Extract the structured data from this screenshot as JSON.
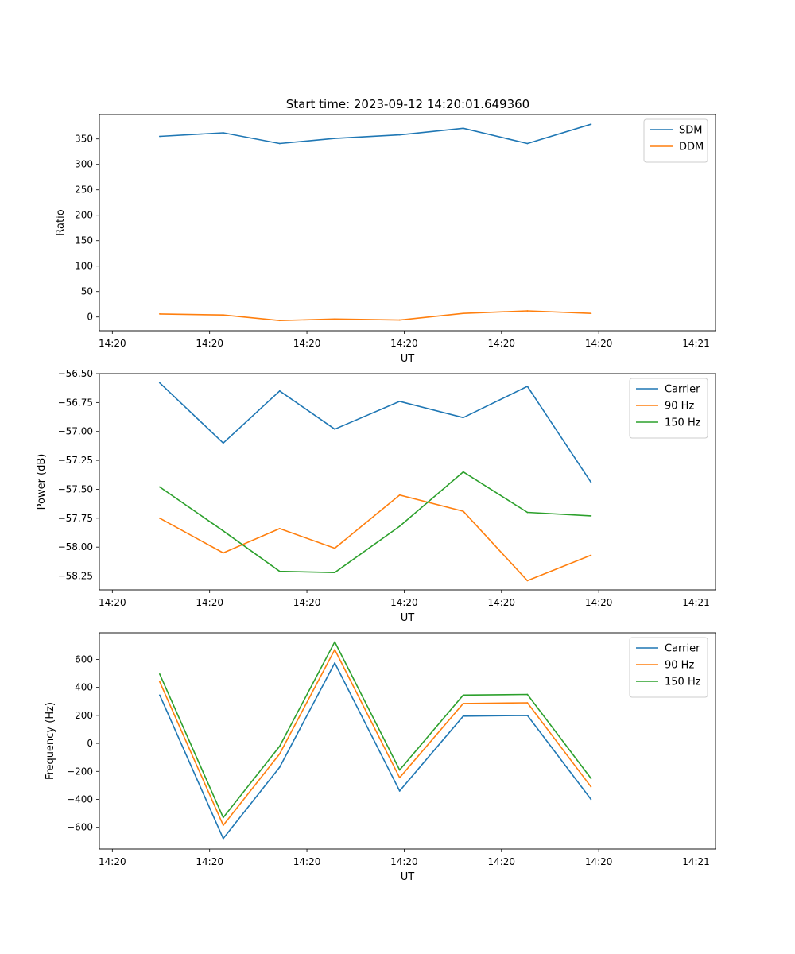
{
  "title": "Start time: 2023-09-12 14:20:01.649360",
  "chart_data": [
    {
      "type": "line",
      "ylabel": "Ratio",
      "xlabel": "UT",
      "xlim": [
        0,
        9.5
      ],
      "ylim": [
        -27,
        398
      ],
      "xticks": [
        0.2,
        1.7,
        3.2,
        4.7,
        6.2,
        7.7,
        9.2
      ],
      "xtick_labels": [
        "14:20",
        "14:20",
        "14:20",
        "14:20",
        "14:20",
        "14:20",
        "14:21"
      ],
      "yticks": [
        0,
        50,
        100,
        150,
        200,
        250,
        300,
        350
      ],
      "ytick_labels": [
        "0",
        "50",
        "100",
        "150",
        "200",
        "250",
        "300",
        "350"
      ],
      "x": [
        0.93,
        1.91,
        2.78,
        3.63,
        4.63,
        5.61,
        6.6,
        7.58
      ],
      "series": [
        {
          "name": "SDM",
          "color": "#1f77b4",
          "values": [
            355,
            362,
            341,
            351,
            358,
            371,
            341,
            379
          ]
        },
        {
          "name": "DDM",
          "color": "#ff7f0e",
          "values": [
            6,
            4,
            -7,
            -4,
            -6,
            7,
            12,
            7
          ]
        }
      ],
      "legend": "top-right"
    },
    {
      "type": "line",
      "ylabel": "Power (dB)",
      "xlabel": "UT",
      "xlim": [
        0,
        9.5
      ],
      "ylim": [
        -58.37,
        -56.5
      ],
      "xticks": [
        0.2,
        1.7,
        3.2,
        4.7,
        6.2,
        7.7,
        9.2
      ],
      "xtick_labels": [
        "14:20",
        "14:20",
        "14:20",
        "14:20",
        "14:20",
        "14:20",
        "14:21"
      ],
      "yticks": [
        -56.5,
        -56.75,
        -57.0,
        -57.25,
        -57.5,
        -57.75,
        -58.0,
        -58.25
      ],
      "ytick_labels": [
        "−56.50",
        "−56.75",
        "−57.00",
        "−57.25",
        "−57.50",
        "−57.75",
        "−58.00",
        "−58.25"
      ],
      "x": [
        0.93,
        1.91,
        2.78,
        3.63,
        4.63,
        5.61,
        6.6,
        7.58
      ],
      "series": [
        {
          "name": "Carrier",
          "color": "#1f77b4",
          "values": [
            -56.58,
            -57.1,
            -56.65,
            -56.98,
            -56.74,
            -56.88,
            -56.61,
            -57.44
          ]
        },
        {
          "name": "90 Hz",
          "color": "#ff7f0e",
          "values": [
            -57.75,
            -58.05,
            -57.84,
            -58.01,
            -57.55,
            -57.69,
            -58.29,
            -58.07
          ]
        },
        {
          "name": "150 Hz",
          "color": "#2ca02c",
          "values": [
            -57.48,
            -57.86,
            -58.21,
            -58.22,
            -57.82,
            -57.35,
            -57.7,
            -57.73
          ]
        }
      ],
      "legend": "top-right"
    },
    {
      "type": "line",
      "ylabel": "Frequency (Hz)",
      "xlabel": "UT",
      "xlim": [
        0,
        9.5
      ],
      "ylim": [
        -755,
        790
      ],
      "xticks": [
        0.2,
        1.7,
        3.2,
        4.7,
        6.2,
        7.7,
        9.2
      ],
      "xtick_labels": [
        "14:20",
        "14:20",
        "14:20",
        "14:20",
        "14:20",
        "14:20",
        "14:21"
      ],
      "yticks": [
        -600,
        -400,
        -200,
        0,
        200,
        400,
        600
      ],
      "ytick_labels": [
        "−600",
        "−400",
        "−200",
        "0",
        "200",
        "400",
        "600"
      ],
      "x": [
        0.93,
        1.91,
        2.78,
        3.63,
        4.63,
        5.61,
        6.6,
        7.58
      ],
      "series": [
        {
          "name": "Carrier",
          "color": "#1f77b4",
          "values": [
            345,
            -680,
            -170,
            575,
            -340,
            195,
            200,
            -400
          ]
        },
        {
          "name": "90 Hz",
          "color": "#ff7f0e",
          "values": [
            440,
            -585,
            -75,
            670,
            -245,
            285,
            290,
            -310
          ]
        },
        {
          "name": "150 Hz",
          "color": "#2ca02c",
          "values": [
            495,
            -530,
            -20,
            725,
            -190,
            345,
            350,
            -250
          ]
        }
      ],
      "legend": "top-right"
    }
  ]
}
